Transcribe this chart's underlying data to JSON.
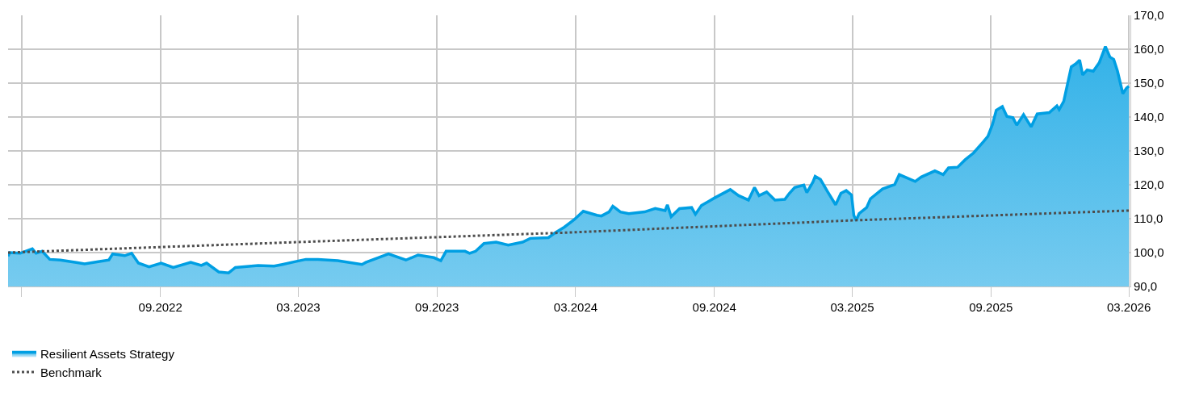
{
  "chart_data": {
    "type": "area",
    "series": [
      {
        "name": "Resilient Assets Strategy",
        "color": "#009fe3",
        "x": [
          "2022-03-13",
          "2022-03-15",
          "2022-03-29",
          "2022-04-14",
          "2022-04-19",
          "2022-04-27",
          "2022-05-07",
          "2022-05-21",
          "2022-06-11",
          "2022-06-22",
          "2022-07-10",
          "2022-07-24",
          "2022-07-29",
          "2022-08-14",
          "2022-08-23",
          "2022-09-01",
          "2022-09-15",
          "2022-10-01",
          "2022-10-17",
          "2022-11-09",
          "2022-11-23",
          "2022-11-30",
          "2022-12-16",
          "2022-12-29",
          "2023-01-07",
          "2023-02-06",
          "2023-02-27",
          "2023-03-10",
          "2023-03-26",
          "2023-04-10",
          "2023-04-26",
          "2023-05-22",
          "2023-06-23",
          "2023-06-28",
          "2023-07-28",
          "2023-08-20",
          "2023-09-05",
          "2023-09-26",
          "2023-10-05",
          "2023-10-12",
          "2023-11-06",
          "2023-11-12",
          "2023-11-20",
          "2023-12-01",
          "2023-12-17",
          "2024-01-02",
          "2024-01-21",
          "2024-01-31",
          "2024-02-24",
          "2024-03-03",
          "2024-03-16",
          "2024-03-29",
          "2024-04-10",
          "2024-04-28",
          "2024-05-04",
          "2024-05-14",
          "2024-05-19",
          "2024-05-29",
          "2024-06-09",
          "2024-06-30",
          "2024-07-14",
          "2024-07-27",
          "2024-07-30",
          "2024-08-04",
          "2024-08-15",
          "2024-08-31",
          "2024-09-05",
          "2024-09-13",
          "2024-09-23",
          "2024-09-30",
          "2024-10-21",
          "2024-11-01",
          "2024-11-14",
          "2024-11-22",
          "2024-11-28",
          "2024-12-08",
          "2024-12-19",
          "2025-01-01",
          "2025-01-07",
          "2025-01-14",
          "2025-01-26",
          "2025-01-30",
          "2025-02-07",
          "2025-02-10",
          "2025-02-17",
          "2025-02-26",
          "2025-03-09",
          "2025-03-16",
          "2025-03-23",
          "2025-03-30",
          "2025-04-02",
          "2025-04-05",
          "2025-04-09",
          "2025-04-19",
          "2025-04-24",
          "2025-05-10",
          "2025-05-26",
          "2025-06-01",
          "2025-06-22",
          "2025-06-30",
          "2025-07-18",
          "2025-07-29",
          "2025-08-05",
          "2025-08-17",
          "2025-08-27",
          "2025-09-07",
          "2025-09-20",
          "2025-09-26",
          "2025-10-02",
          "2025-10-07",
          "2025-10-15",
          "2025-10-21",
          "2025-10-29",
          "2025-11-03",
          "2025-11-12",
          "2025-11-22",
          "2025-11-30",
          "2025-12-16",
          "2025-12-26",
          "2025-12-29",
          "2026-01-04",
          "2026-01-14",
          "2026-01-20",
          "2026-01-25",
          "2026-01-29",
          "2026-02-04",
          "2026-02-12",
          "2026-02-20",
          "2026-02-28",
          "2026-03-06",
          "2026-03-11",
          "2026-03-16",
          "2026-03-23",
          "2026-03-28",
          "2026-03-31"
        ],
        "values": [
          98.9,
          100,
          99.8,
          101.1,
          99.8,
          100.4,
          98,
          97.8,
          97.1,
          96.7,
          97.3,
          97.8,
          99.6,
          99.1,
          99.8,
          96.9,
          95.8,
          96.9,
          95.6,
          97.1,
          96.2,
          96.9,
          94.3,
          94.0,
          95.6,
          96.2,
          96,
          96.5,
          97.3,
          98,
          98,
          97.6,
          96.5,
          97.1,
          99.6,
          97.8,
          99.3,
          98.5,
          97.6,
          100.4,
          100.4,
          99.8,
          100.4,
          102.7,
          103.1,
          102.2,
          103.1,
          104.2,
          104.4,
          105.7,
          107.5,
          109.7,
          112.2,
          111,
          110.8,
          112,
          113.7,
          112,
          111.5,
          112,
          113,
          112.4,
          114.1,
          110.6,
          113,
          113.3,
          111.3,
          113.9,
          115.2,
          116.1,
          118.6,
          116.8,
          115.5,
          119.2,
          116.8,
          117.9,
          115.5,
          115.7,
          117.5,
          119.2,
          119.9,
          117.7,
          120.8,
          122.5,
          121.6,
          118.1,
          114.1,
          117.5,
          118.3,
          117,
          111,
          109.5,
          111.5,
          113.3,
          115.9,
          118.8,
          120.1,
          123,
          121,
          122.3,
          124.1,
          123,
          125,
          125.2,
          127.4,
          129.4,
          132.7,
          134.3,
          137.8,
          142,
          143.1,
          140.2,
          139.8,
          137.6,
          140.7,
          137.1,
          140.9,
          141.3,
          143.3,
          142.2,
          144.6,
          154.8,
          155.7,
          156.8,
          152.4,
          153.9,
          153.5,
          156.1,
          160.8,
          157.7,
          157,
          153.5,
          146.9,
          148.6,
          149.1
        ]
      },
      {
        "name": "Benchmark",
        "type": "line",
        "color": "#4d4d4d",
        "line_style": "dotted",
        "x": [
          "2022-03-13",
          "2023-03-31",
          "2024-03-31",
          "2025-03-31",
          "2026-03-31"
        ],
        "values": [
          100,
          103.1,
          106.0,
          109.5,
          112.4
        ]
      }
    ],
    "xlim": [
      "2022-03-13",
      "2026-04-02"
    ],
    "xticks": [
      {
        "value": "2022-03-31",
        "label": null
      },
      {
        "value": "2022-09-30",
        "label": "09.2022"
      },
      {
        "value": "2023-03-31",
        "label": "03.2023"
      },
      {
        "value": "2023-09-30",
        "label": "09.2023"
      },
      {
        "value": "2024-03-31",
        "label": "03.2024"
      },
      {
        "value": "2024-09-30",
        "label": "09.2024"
      },
      {
        "value": "2025-03-31",
        "label": "03.2025"
      },
      {
        "value": "2025-09-30",
        "label": "09.2025"
      },
      {
        "value": "2026-03-31",
        "label": "03.2026"
      }
    ],
    "ylim": [
      90,
      170
    ],
    "yticks": [
      {
        "value": 90,
        "label": "90,0"
      },
      {
        "value": 100,
        "label": "100,0"
      },
      {
        "value": 110,
        "label": "110,0"
      },
      {
        "value": 120,
        "label": "120,0"
      },
      {
        "value": 130,
        "label": "130,0"
      },
      {
        "value": 140,
        "label": "140,0"
      },
      {
        "value": 150,
        "label": "150,0"
      },
      {
        "value": 160,
        "label": "160,0"
      },
      {
        "value": 170,
        "label": "170,0"
      }
    ],
    "grid": true,
    "legend": "bottom"
  }
}
